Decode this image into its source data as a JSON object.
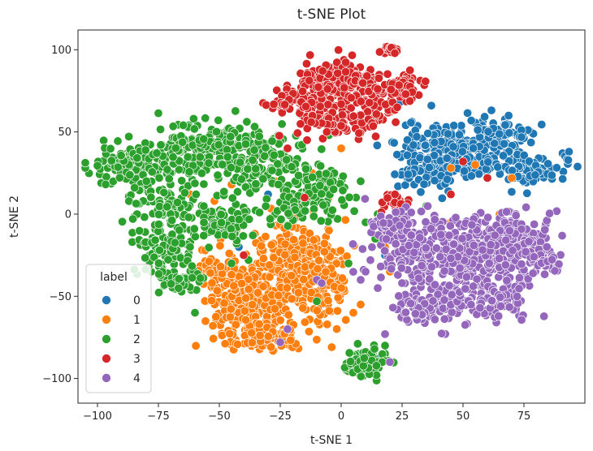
{
  "chart_data": {
    "type": "scatter",
    "title": "t-SNE Plot",
    "xlabel": "t-SNE 1",
    "ylabel": "t-SNE 2",
    "xlim": [
      -108,
      100
    ],
    "ylim": [
      -115,
      112
    ],
    "xticks": [
      -100,
      -75,
      -50,
      -25,
      0,
      25,
      50,
      75
    ],
    "yticks": [
      -100,
      -50,
      0,
      50,
      100
    ],
    "x_tick_labels": [
      "−100",
      "−75",
      "−50",
      "−25",
      "0",
      "25",
      "50",
      "75"
    ],
    "y_tick_labels": [
      "−100",
      "−50",
      "0",
      "50",
      "100"
    ],
    "grid": false,
    "legend": {
      "title": "label",
      "position": "lower-left"
    },
    "series": [
      {
        "name": "0",
        "color": "#1f77b4",
        "clusters": [
          {
            "cx": 52,
            "cy": 40,
            "sx": 14,
            "sy": 8,
            "n": 260
          },
          {
            "cx": 78,
            "cy": 25,
            "sx": 7,
            "sy": 4,
            "n": 70
          },
          {
            "cx": 38,
            "cy": 25,
            "sx": 7,
            "sy": 6,
            "n": 60
          },
          {
            "cx": 65,
            "cy": 52,
            "sx": 7,
            "sy": 4,
            "n": 50
          }
        ],
        "points": [
          [
            18,
            -25
          ],
          [
            24,
            68
          ],
          [
            37,
            66
          ],
          [
            -42,
            -20
          ],
          [
            -30,
            12
          ],
          [
            0,
            58
          ],
          [
            -15,
            -35
          ],
          [
            15,
            -88
          ]
        ]
      },
      {
        "name": "1",
        "color": "#ff7f0e",
        "clusters": [
          {
            "cx": -38,
            "cy": -55,
            "sx": 9,
            "sy": 12,
            "n": 240
          },
          {
            "cx": -18,
            "cy": -25,
            "sx": 9,
            "sy": 14,
            "n": 180
          },
          {
            "cx": -8,
            "cy": -45,
            "sx": 6,
            "sy": 12,
            "n": 100
          },
          {
            "cx": -48,
            "cy": -35,
            "sx": 6,
            "sy": 6,
            "n": 60
          },
          {
            "cx": -30,
            "cy": -75,
            "sx": 9,
            "sy": 4,
            "n": 80
          }
        ],
        "points": [
          [
            -80,
            20
          ],
          [
            -62,
            12
          ],
          [
            -52,
            8
          ],
          [
            -45,
            18
          ],
          [
            -38,
            22
          ],
          [
            -27,
            20
          ],
          [
            -12,
            25
          ],
          [
            0,
            40
          ],
          [
            10,
            56
          ],
          [
            20,
            62
          ],
          [
            45,
            28
          ],
          [
            55,
            30
          ],
          [
            70,
            22
          ],
          [
            18,
            -20
          ],
          [
            20,
            -35
          ],
          [
            8,
            -55
          ],
          [
            5,
            -60
          ],
          [
            45,
            -5
          ],
          [
            65,
            0
          ],
          [
            -5,
            -10
          ]
        ]
      },
      {
        "name": "2",
        "color": "#2ca02c",
        "clusters": [
          {
            "cx": -85,
            "cy": 30,
            "sx": 8,
            "sy": 7,
            "n": 130
          },
          {
            "cx": -55,
            "cy": 38,
            "sx": 12,
            "sy": 9,
            "n": 210
          },
          {
            "cx": -30,
            "cy": 30,
            "sx": 8,
            "sy": 9,
            "n": 120
          },
          {
            "cx": -72,
            "cy": 5,
            "sx": 8,
            "sy": 9,
            "n": 90
          },
          {
            "cx": -72,
            "cy": -22,
            "sx": 6,
            "sy": 10,
            "n": 90
          },
          {
            "cx": -50,
            "cy": -5,
            "sx": 7,
            "sy": 7,
            "n": 70
          },
          {
            "cx": -10,
            "cy": 15,
            "sx": 7,
            "sy": 8,
            "n": 100
          },
          {
            "cx": -65,
            "cy": -40,
            "sx": 5,
            "sy": 4,
            "n": 30
          },
          {
            "cx": 10,
            "cy": -90,
            "sx": 4,
            "sy": 5,
            "n": 80
          },
          {
            "cx": -22,
            "cy": 0,
            "sx": 5,
            "sy": 4,
            "n": 25
          }
        ],
        "points": [
          [
            -10,
            -53
          ],
          [
            -60,
            -60
          ],
          [
            -38,
            -28
          ],
          [
            -45,
            -30
          ],
          [
            15,
            0
          ],
          [
            14,
            -15
          ],
          [
            10,
            -5
          ],
          [
            18,
            -80
          ],
          [
            35,
            5
          ],
          [
            -5,
            48
          ],
          [
            -2,
            52
          ],
          [
            45,
            -35
          ],
          [
            55,
            -20
          ],
          [
            8,
            20
          ],
          [
            3,
            -30
          ]
        ]
      },
      {
        "name": "3",
        "color": "#d62728",
        "clusters": [
          {
            "cx": -2,
            "cy": 82,
            "sx": 7,
            "sy": 6,
            "n": 130
          },
          {
            "cx": -14,
            "cy": 70,
            "sx": 6,
            "sy": 5,
            "n": 80
          },
          {
            "cx": 12,
            "cy": 68,
            "sx": 6,
            "sy": 7,
            "n": 90
          },
          {
            "cx": 25,
            "cy": 78,
            "sx": 5,
            "sy": 4,
            "n": 60
          },
          {
            "cx": -2,
            "cy": 55,
            "sx": 8,
            "sy": 5,
            "n": 70
          },
          {
            "cx": -25,
            "cy": 68,
            "sx": 3,
            "sy": 3,
            "n": 20
          },
          {
            "cx": 21,
            "cy": 100,
            "sx": 2,
            "sy": 1.5,
            "n": 18
          },
          {
            "cx": 22,
            "cy": 8,
            "sx": 3,
            "sy": 3,
            "n": 22
          }
        ],
        "points": [
          [
            -22,
            40
          ],
          [
            -14,
            45
          ],
          [
            45,
            12
          ],
          [
            50,
            32
          ],
          [
            60,
            22
          ],
          [
            -15,
            10
          ],
          [
            -40,
            -25
          ],
          [
            23,
            65
          ]
        ]
      },
      {
        "name": "4",
        "color": "#9467bd",
        "clusters": [
          {
            "cx": 52,
            "cy": -25,
            "sx": 14,
            "sy": 12,
            "n": 300
          },
          {
            "cx": 72,
            "cy": -18,
            "sx": 8,
            "sy": 10,
            "n": 110
          },
          {
            "cx": 28,
            "cy": -20,
            "sx": 8,
            "sy": 10,
            "n": 100
          },
          {
            "cx": 45,
            "cy": -55,
            "sx": 12,
            "sy": 6,
            "n": 110
          },
          {
            "cx": 65,
            "cy": -52,
            "sx": 8,
            "sy": 5,
            "n": 60
          },
          {
            "cx": 20,
            "cy": -5,
            "sx": 4,
            "sy": 4,
            "n": 40
          },
          {
            "cx": 82,
            "cy": -28,
            "sx": 4,
            "sy": 4,
            "n": 40
          },
          {
            "cx": 30,
            "cy": -58,
            "sx": 4,
            "sy": 5,
            "n": 30
          }
        ],
        "points": [
          [
            18,
            -73
          ],
          [
            20,
            -90
          ],
          [
            -25,
            -78
          ],
          [
            -10,
            -40
          ],
          [
            -22,
            -70
          ],
          [
            10,
            -35
          ],
          [
            12,
            -28
          ],
          [
            15,
            -45
          ],
          [
            8,
            -40
          ],
          [
            -8,
            -42
          ]
        ]
      }
    ]
  },
  "legend_items": [
    {
      "label": "0",
      "color": "#1f77b4"
    },
    {
      "label": "1",
      "color": "#ff7f0e"
    },
    {
      "label": "2",
      "color": "#2ca02c"
    },
    {
      "label": "3",
      "color": "#d62728"
    },
    {
      "label": "4",
      "color": "#9467bd"
    }
  ]
}
